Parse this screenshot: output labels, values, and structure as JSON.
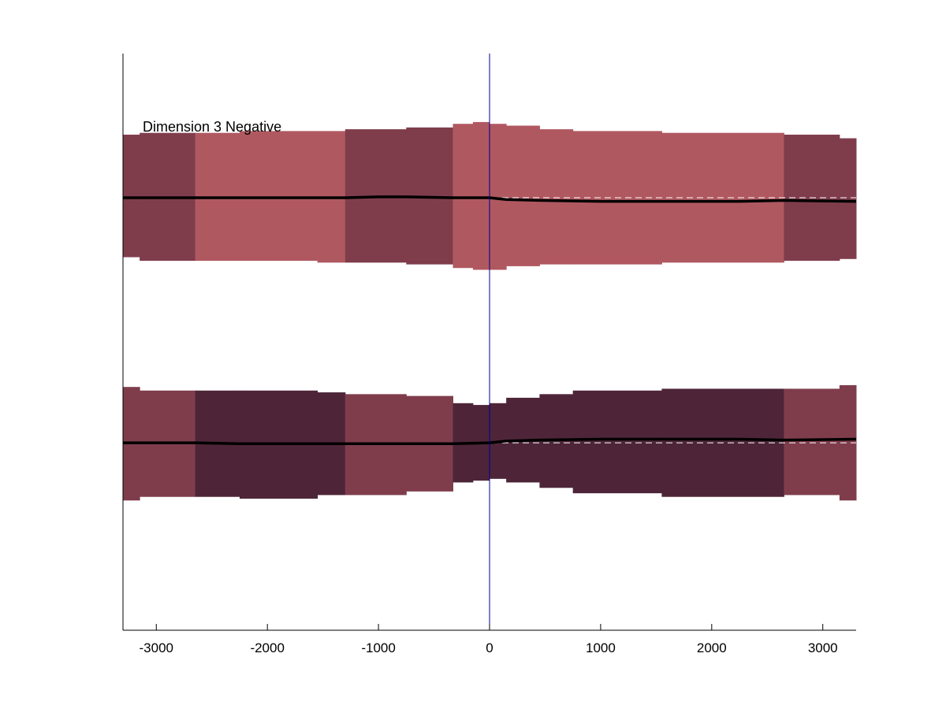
{
  "chart_data": {
    "type": "area",
    "title": "",
    "xlabel": "",
    "ylabel": "",
    "annotation": "Dimension 3 Negative",
    "xlim": [
      -3300,
      3300
    ],
    "ylim": [
      -1.6,
      1.6
    ],
    "grid": false,
    "legend": "none",
    "x_ticks": [
      -3000,
      -2000,
      -1000,
      0,
      1000,
      2000,
      3000
    ],
    "x_tick_labels": [
      "-3000",
      "-2000",
      "-1000",
      "0",
      "1000",
      "2000",
      "3000"
    ],
    "vertical_marker_x": 0,
    "colors": {
      "light": "#B05860",
      "medium": "#7F3D4C",
      "dark": "#4E2538",
      "line": "#000000",
      "zero_line": "#FFFFFF",
      "marker": "#00008B",
      "axes": "#000000"
    },
    "series": [
      {
        "baseline": 0.8,
        "bands": [
          {
            "x0": -3300,
            "x1": -3150,
            "lo": 0.47,
            "hi": 1.15,
            "shade": "medium"
          },
          {
            "x0": -3150,
            "x1": -2650,
            "lo": 0.45,
            "hi": 1.16,
            "shade": "medium"
          },
          {
            "x0": -2650,
            "x1": -2250,
            "lo": 0.45,
            "hi": 1.16,
            "shade": "light"
          },
          {
            "x0": -2250,
            "x1": -1550,
            "lo": 0.45,
            "hi": 1.17,
            "shade": "light"
          },
          {
            "x0": -1550,
            "x1": -1300,
            "lo": 0.44,
            "hi": 1.17,
            "shade": "light"
          },
          {
            "x0": -1300,
            "x1": -750,
            "lo": 0.44,
            "hi": 1.18,
            "shade": "medium"
          },
          {
            "x0": -750,
            "x1": -330,
            "lo": 0.43,
            "hi": 1.19,
            "shade": "medium"
          },
          {
            "x0": -330,
            "x1": -150,
            "lo": 0.41,
            "hi": 1.21,
            "shade": "light"
          },
          {
            "x0": -150,
            "x1": 0,
            "lo": 0.4,
            "hi": 1.22,
            "shade": "light"
          },
          {
            "x0": 0,
            "x1": 150,
            "lo": 0.4,
            "hi": 1.21,
            "shade": "light"
          },
          {
            "x0": 150,
            "x1": 450,
            "lo": 0.42,
            "hi": 1.2,
            "shade": "light"
          },
          {
            "x0": 450,
            "x1": 750,
            "lo": 0.43,
            "hi": 1.18,
            "shade": "light"
          },
          {
            "x0": 750,
            "x1": 1550,
            "lo": 0.43,
            "hi": 1.17,
            "shade": "light"
          },
          {
            "x0": 1550,
            "x1": 2650,
            "lo": 0.44,
            "hi": 1.16,
            "shade": "light"
          },
          {
            "x0": 2650,
            "x1": 3150,
            "lo": 0.45,
            "hi": 1.15,
            "shade": "medium"
          },
          {
            "x0": 3150,
            "x1": 3300,
            "lo": 0.46,
            "hi": 1.13,
            "shade": "medium"
          }
        ],
        "line_x": [
          -3300,
          -2650,
          -1300,
          -1000,
          -750,
          -330,
          0,
          150,
          450,
          1000,
          1550,
          2250,
          2650,
          3300
        ],
        "line_y": [
          0.8,
          0.8,
          0.8,
          0.805,
          0.805,
          0.8,
          0.8,
          0.79,
          0.785,
          0.78,
          0.78,
          0.78,
          0.785,
          0.78
        ]
      },
      {
        "baseline": -0.56,
        "bands": [
          {
            "x0": -3300,
            "x1": -3150,
            "lo": -0.88,
            "hi": -0.25,
            "shade": "medium"
          },
          {
            "x0": -3150,
            "x1": -2650,
            "lo": -0.86,
            "hi": -0.27,
            "shade": "medium"
          },
          {
            "x0": -2650,
            "x1": -2250,
            "lo": -0.86,
            "hi": -0.27,
            "shade": "dark"
          },
          {
            "x0": -2250,
            "x1": -1550,
            "lo": -0.87,
            "hi": -0.27,
            "shade": "dark"
          },
          {
            "x0": -1550,
            "x1": -1300,
            "lo": -0.85,
            "hi": -0.28,
            "shade": "dark"
          },
          {
            "x0": -1300,
            "x1": -750,
            "lo": -0.85,
            "hi": -0.29,
            "shade": "medium"
          },
          {
            "x0": -750,
            "x1": -330,
            "lo": -0.83,
            "hi": -0.3,
            "shade": "medium"
          },
          {
            "x0": -330,
            "x1": -150,
            "lo": -0.78,
            "hi": -0.34,
            "shade": "dark"
          },
          {
            "x0": -150,
            "x1": 0,
            "lo": -0.77,
            "hi": -0.35,
            "shade": "dark"
          },
          {
            "x0": 0,
            "x1": 150,
            "lo": -0.76,
            "hi": -0.34,
            "shade": "dark"
          },
          {
            "x0": 150,
            "x1": 450,
            "lo": -0.78,
            "hi": -0.31,
            "shade": "dark"
          },
          {
            "x0": 450,
            "x1": 750,
            "lo": -0.81,
            "hi": -0.29,
            "shade": "dark"
          },
          {
            "x0": 750,
            "x1": 1550,
            "lo": -0.84,
            "hi": -0.27,
            "shade": "dark"
          },
          {
            "x0": 1550,
            "x1": 2650,
            "lo": -0.86,
            "hi": -0.26,
            "shade": "dark"
          },
          {
            "x0": 2650,
            "x1": 3150,
            "lo": -0.85,
            "hi": -0.26,
            "shade": "medium"
          },
          {
            "x0": 3150,
            "x1": 3300,
            "lo": -0.88,
            "hi": -0.24,
            "shade": "medium"
          }
        ],
        "line_x": [
          -3300,
          -2650,
          -2250,
          -1300,
          -750,
          -330,
          0,
          150,
          450,
          1000,
          1550,
          2250,
          2650,
          3300
        ],
        "line_y": [
          -0.56,
          -0.56,
          -0.565,
          -0.565,
          -0.565,
          -0.565,
          -0.56,
          -0.55,
          -0.545,
          -0.54,
          -0.54,
          -0.54,
          -0.545,
          -0.54
        ]
      }
    ]
  }
}
